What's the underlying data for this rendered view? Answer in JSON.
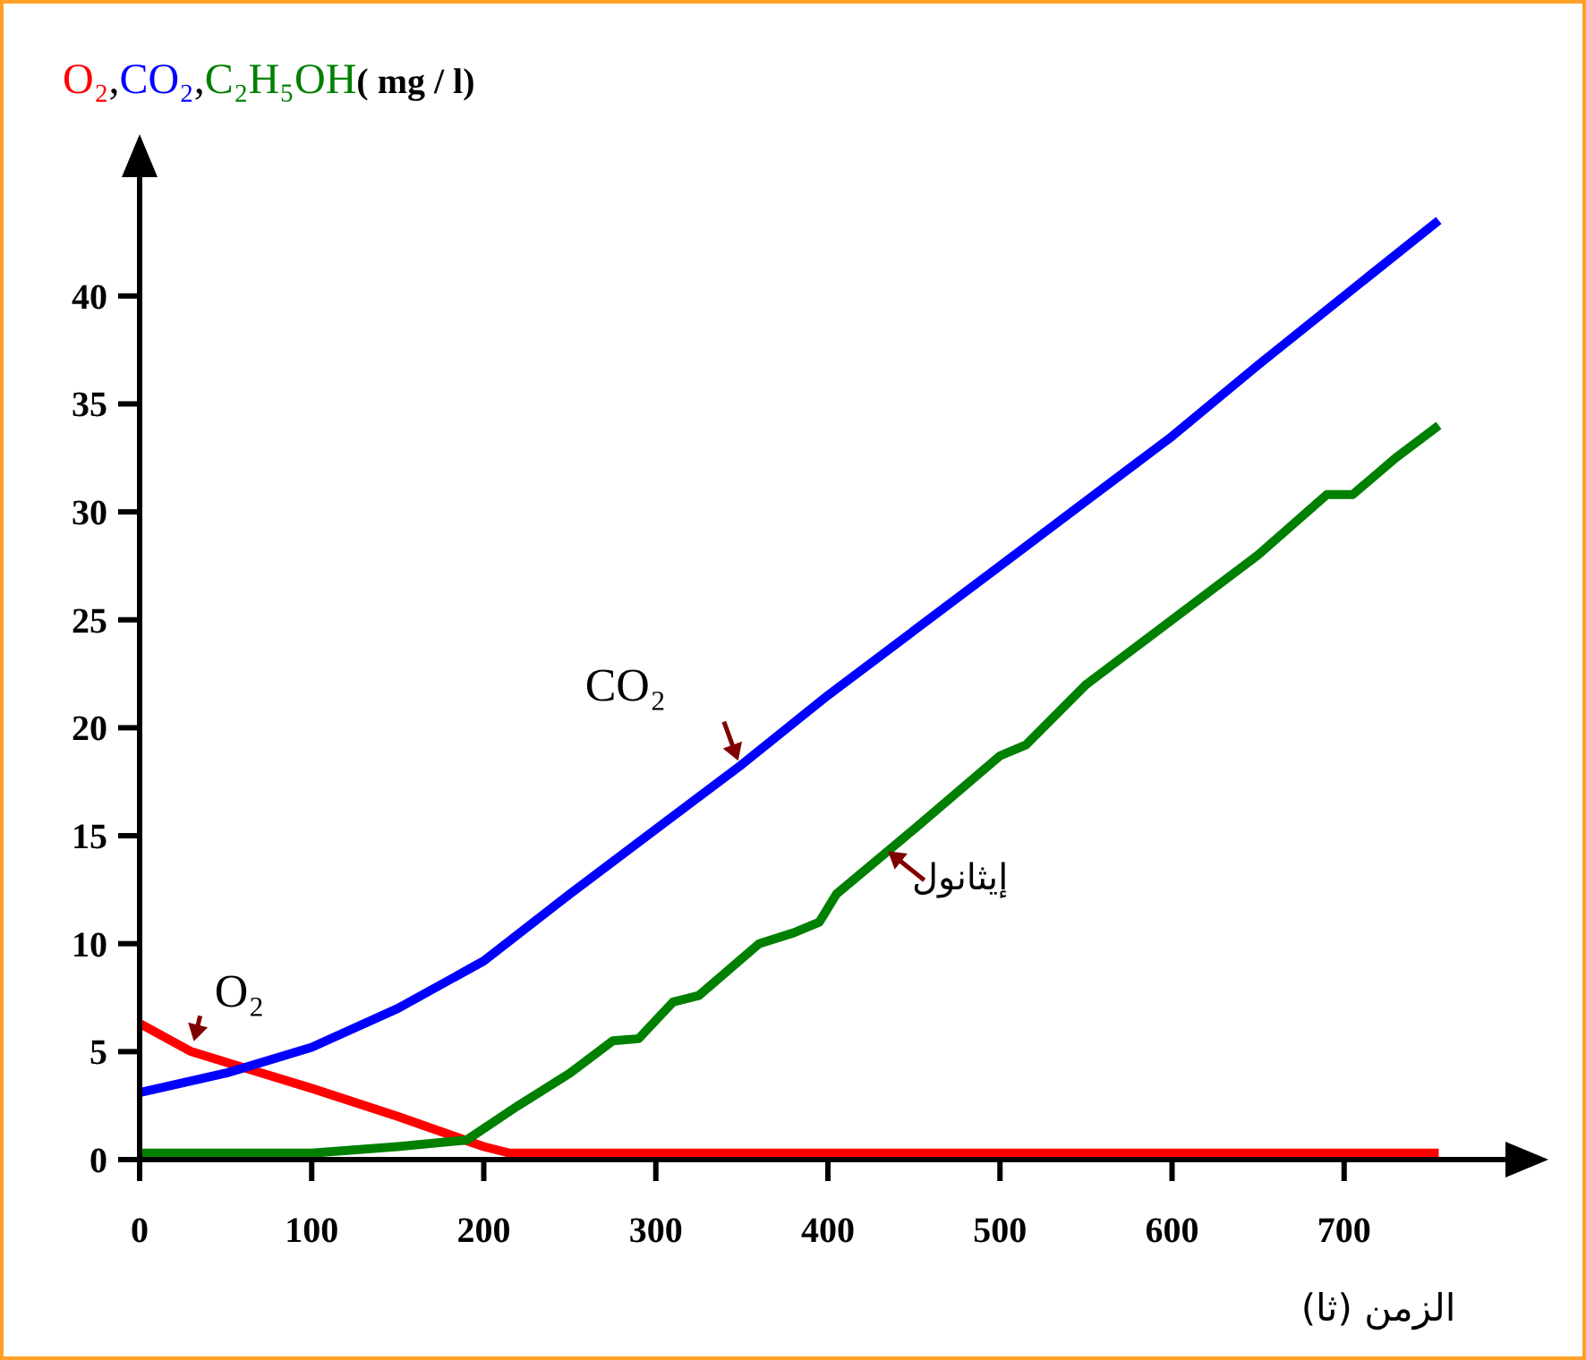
{
  "chart_data": {
    "type": "line",
    "ylabel": "O₂,CO₂,C₂H₅OH( mg / l)",
    "xlabel": "الزمن (ثا)",
    "xlim": [
      0,
      800
    ],
    "ylim": [
      0,
      46
    ],
    "xticks": [
      0,
      100,
      200,
      300,
      400,
      500,
      600,
      700
    ],
    "yticks": [
      0,
      5,
      10,
      15,
      20,
      25,
      30,
      35,
      40
    ],
    "grid": false,
    "marker": "none",
    "line_style": "solid",
    "series": [
      {
        "color": "#ff0000",
        "x": [
          0,
          30,
          100,
          150,
          200,
          215,
          755
        ],
        "values": [
          6.3,
          5.0,
          3.3,
          2.0,
          0.6,
          0.3,
          0.3
        ]
      },
      {
        "color": "#0000ff",
        "x": [
          0,
          50,
          100,
          150,
          200,
          250,
          300,
          350,
          400,
          450,
          500,
          550,
          600,
          650,
          700,
          755
        ],
        "values": [
          3.1,
          4.0,
          5.2,
          7.0,
          9.2,
          12.3,
          15.3,
          18.3,
          21.5,
          24.5,
          27.5,
          30.5,
          33.5,
          36.8,
          40.0,
          43.5
        ]
      },
      {
        "color": "#008000",
        "x": [
          0,
          100,
          150,
          190,
          220,
          250,
          275,
          290,
          310,
          325,
          360,
          380,
          395,
          405,
          450,
          500,
          515,
          550,
          600,
          650,
          690,
          705,
          730,
          755
        ],
        "values": [
          0.3,
          0.3,
          0.6,
          0.9,
          2.5,
          4.0,
          5.5,
          5.6,
          7.3,
          7.6,
          10.0,
          10.5,
          11.0,
          12.3,
          15.3,
          18.7,
          19.2,
          22.0,
          25.0,
          28.0,
          30.8,
          30.8,
          32.5,
          34.0
        ]
      }
    ],
    "annotations": [
      {
        "text": "O₂",
        "x": 30,
        "y": 5.0
      },
      {
        "text": "CO₂",
        "x": 350,
        "y": 18.0
      },
      {
        "text": "إيثانول",
        "x": 430,
        "y": 14.6
      }
    ]
  }
}
